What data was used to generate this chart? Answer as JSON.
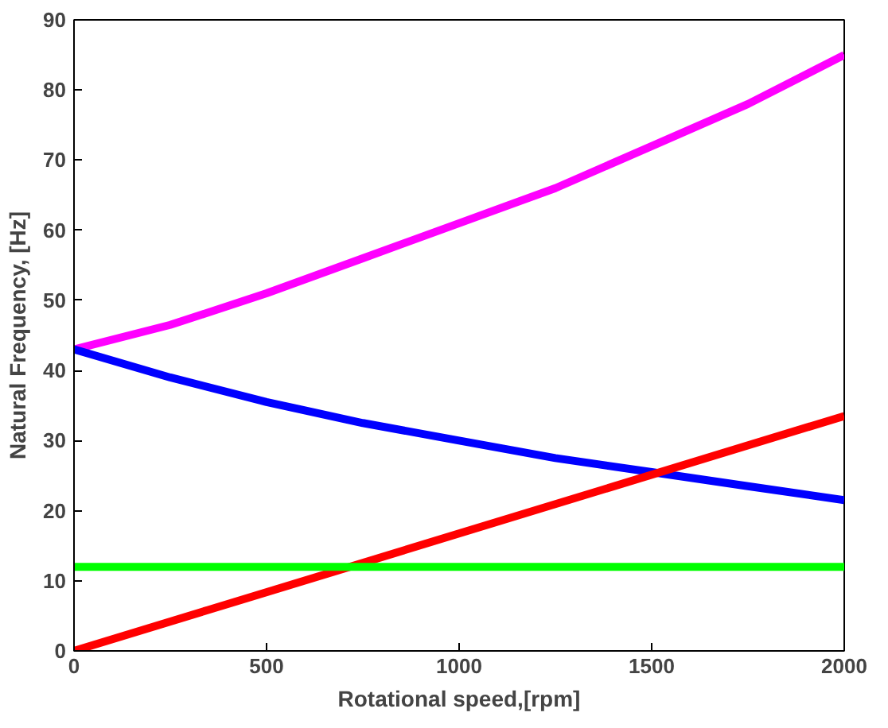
{
  "chart_data": {
    "type": "line",
    "xlabel": "Rotational speed,[rpm]",
    "ylabel": "Natural Frequency, [Hz]",
    "xlim": [
      0,
      2000
    ],
    "ylim": [
      0,
      90
    ],
    "xticks": [
      0,
      500,
      1000,
      1500,
      2000
    ],
    "yticks": [
      0,
      10,
      20,
      30,
      40,
      50,
      60,
      70,
      80,
      90
    ],
    "grid": false,
    "marker": "none",
    "line_style": "solid",
    "series": [
      {
        "color": "#ff00ff",
        "x": [
          0,
          250,
          500,
          750,
          1000,
          1250,
          1500,
          1750,
          2000
        ],
        "values": [
          43,
          46.5,
          51,
          56,
          61,
          66,
          72,
          78,
          85
        ]
      },
      {
        "color": "#0000ff",
        "x": [
          0,
          250,
          500,
          750,
          1000,
          1250,
          1500,
          1750,
          2000
        ],
        "values": [
          43,
          39,
          35.5,
          32.5,
          30,
          27.5,
          25.5,
          23.5,
          21.5
        ]
      },
      {
        "color": "#ff0000",
        "x": [
          0,
          2000
        ],
        "values": [
          0,
          33.5
        ]
      },
      {
        "color": "#00ff00",
        "x": [
          0,
          2000
        ],
        "values": [
          12,
          12
        ]
      }
    ]
  }
}
